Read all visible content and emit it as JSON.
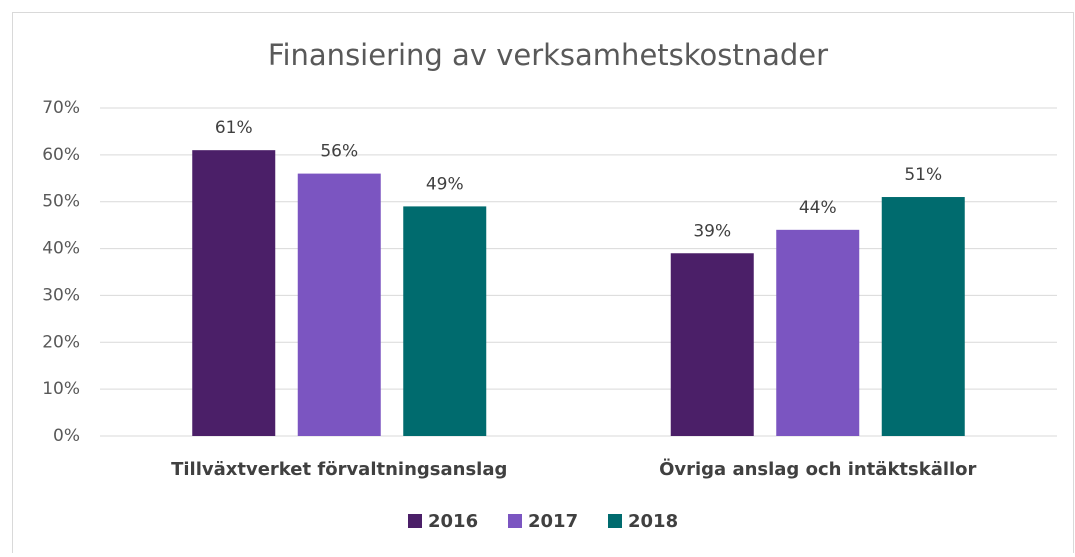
{
  "chart_data": {
    "type": "bar",
    "title": "Finansiering av verksamhetskostnader",
    "categories": [
      "Tillväxtverket förvaltningsanslag",
      "Övriga anslag och intäktskällor"
    ],
    "series": [
      {
        "name": "2016",
        "color": "#4b1f68",
        "values": [
          61,
          39
        ],
        "value_labels": [
          "61%",
          "39%"
        ]
      },
      {
        "name": "2017",
        "color": "#7b55c1",
        "values": [
          56,
          44
        ],
        "value_labels": [
          "56%",
          "44%"
        ]
      },
      {
        "name": "2018",
        "color": "#006b6e",
        "values": [
          49,
          51
        ],
        "value_labels": [
          "49%",
          "51%"
        ]
      }
    ],
    "ylim": [
      0,
      70
    ],
    "yticks": [
      {
        "value": 0,
        "label": "0%"
      },
      {
        "value": 10,
        "label": "10%"
      },
      {
        "value": 20,
        "label": "20%"
      },
      {
        "value": 30,
        "label": "30%"
      },
      {
        "value": 40,
        "label": "40%"
      },
      {
        "value": 50,
        "label": "50%"
      },
      {
        "value": 60,
        "label": "60%"
      },
      {
        "value": 70,
        "label": "70%"
      }
    ],
    "grid": true,
    "legend": "bottom"
  }
}
